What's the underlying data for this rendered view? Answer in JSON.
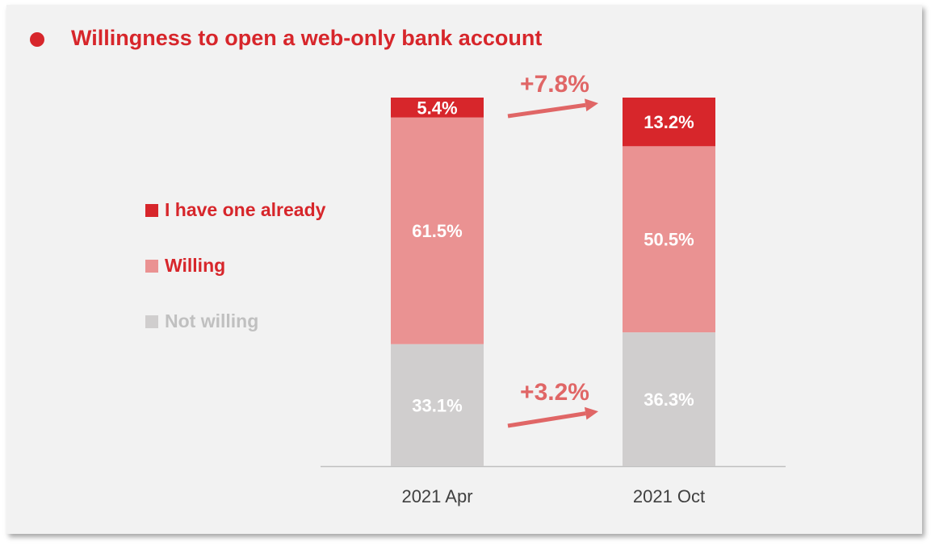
{
  "title": "Willingness to open a web-only bank account",
  "colors": {
    "title": "#d7262b",
    "have_one": "#d7262b",
    "willing": "#ea9292",
    "not_willing": "#d0cece",
    "arrow": "#e06666",
    "axis_line": "#c0c0c0",
    "category_text": "#404040"
  },
  "legend": [
    {
      "label": "I have one already",
      "color": "#d7262b",
      "text_color": "#d7262b"
    },
    {
      "label": "Willing",
      "color": "#ea9292",
      "text_color": "#d7262b"
    },
    {
      "label": "Not willing",
      "color": "#d0cece",
      "text_color": "#c0c0c0"
    }
  ],
  "chart_data": {
    "type": "bar",
    "stacked": true,
    "title": "Willingness to open a web-only bank account",
    "categories": [
      "2021  Apr",
      "2021 Oct"
    ],
    "series": [
      {
        "name": "Not willing",
        "values": [
          33.1,
          36.3
        ],
        "labels": [
          "33.1%",
          "36.3%"
        ]
      },
      {
        "name": "Willing",
        "values": [
          61.5,
          50.5
        ],
        "labels": [
          "61.5%",
          "50.5%"
        ]
      },
      {
        "name": "I have one already",
        "values": [
          5.4,
          13.2
        ],
        "labels": [
          "5.4%",
          "13.2%"
        ]
      }
    ],
    "ylim": [
      0,
      100
    ],
    "annotations": [
      {
        "text": "+7.8%",
        "series": "I have one already"
      },
      {
        "text": "+3.2%",
        "series": "Not willing"
      }
    ],
    "legend_position": "left"
  }
}
